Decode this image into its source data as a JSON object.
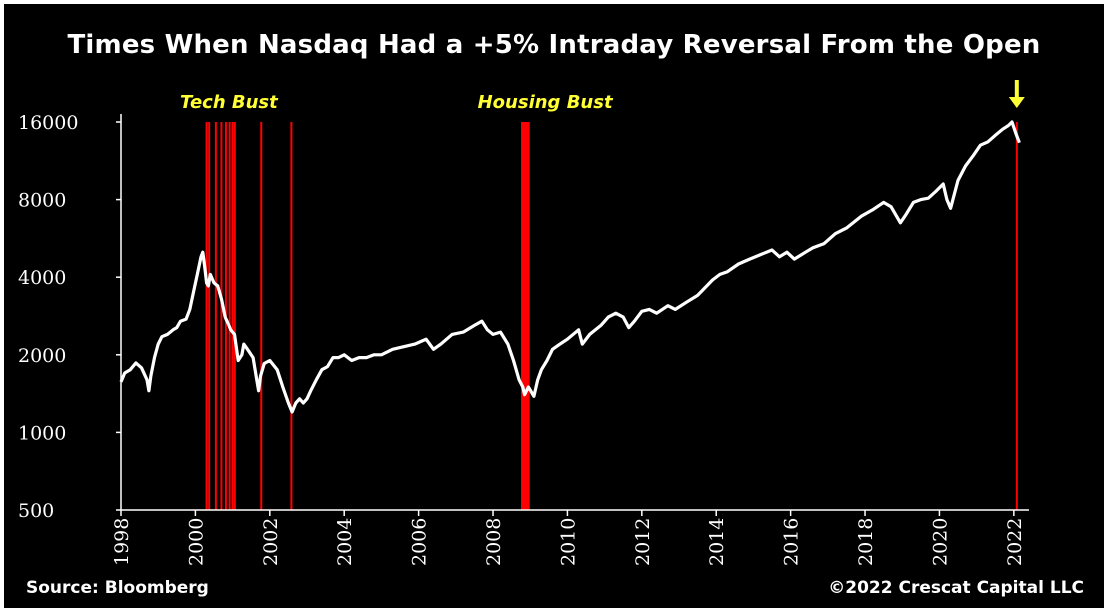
{
  "chart_data": {
    "type": "line",
    "title": "Times When Nasdaq Had a +5% Intraday Reversal From the Open",
    "xlabel": "",
    "ylabel": "",
    "y_scale": "log",
    "ylim": [
      500,
      16000
    ],
    "yticks": [
      500,
      1000,
      2000,
      4000,
      8000,
      16000
    ],
    "xlim": [
      1998,
      2022.3
    ],
    "xticks": [
      1998,
      2000,
      2002,
      2004,
      2006,
      2008,
      2010,
      2012,
      2014,
      2016,
      2018,
      2020,
      2022
    ],
    "grid": false,
    "legend": "none",
    "series": [
      {
        "color": "#ffffff",
        "x": [
          1998.0,
          1998.1,
          1998.25,
          1998.4,
          1998.55,
          1998.7,
          1998.75,
          1998.8,
          1998.9,
          1999.0,
          1999.1,
          1999.25,
          1999.4,
          1999.5,
          1999.6,
          1999.75,
          1999.85,
          1999.95,
          2000.05,
          2000.15,
          2000.2,
          2000.25,
          2000.3,
          2000.35,
          2000.4,
          2000.5,
          2000.6,
          2000.7,
          2000.8,
          2000.9,
          2000.95,
          2001.05,
          2001.15,
          2001.25,
          2001.3,
          2001.4,
          2001.55,
          2001.7,
          2001.75,
          2001.85,
          2002.0,
          2002.2,
          2002.35,
          2002.5,
          2002.6,
          2002.7,
          2002.8,
          2002.9,
          2003.0,
          2003.1,
          2003.25,
          2003.4,
          2003.55,
          2003.7,
          2003.85,
          2004.0,
          2004.2,
          2004.4,
          2004.6,
          2004.8,
          2005.0,
          2005.3,
          2005.6,
          2005.9,
          2006.2,
          2006.4,
          2006.6,
          2006.9,
          2007.2,
          2007.5,
          2007.7,
          2007.85,
          2008.0,
          2008.2,
          2008.4,
          2008.55,
          2008.7,
          2008.8,
          2008.85,
          2008.95,
          2009.1,
          2009.2,
          2009.3,
          2009.45,
          2009.6,
          2009.8,
          2010.0,
          2010.3,
          2010.4,
          2010.6,
          2010.9,
          2011.1,
          2011.3,
          2011.5,
          2011.65,
          2011.8,
          2012.0,
          2012.2,
          2012.4,
          2012.7,
          2012.9,
          2013.2,
          2013.5,
          2013.9,
          2014.1,
          2014.3,
          2014.6,
          2014.9,
          2015.2,
          2015.5,
          2015.7,
          2015.9,
          2016.1,
          2016.4,
          2016.6,
          2016.9,
          2017.2,
          2017.5,
          2017.9,
          2018.2,
          2018.5,
          2018.7,
          2018.95,
          2019.1,
          2019.3,
          2019.5,
          2019.7,
          2019.9,
          2020.1,
          2020.2,
          2020.3,
          2020.5,
          2020.7,
          2020.9,
          2021.1,
          2021.3,
          2021.5,
          2021.7,
          2021.85,
          2021.95,
          2022.05,
          2022.15
        ],
        "values": [
          1570,
          1700,
          1750,
          1860,
          1780,
          1600,
          1450,
          1650,
          1950,
          2200,
          2350,
          2400,
          2500,
          2550,
          2700,
          2750,
          3000,
          3500,
          4100,
          4800,
          5000,
          4400,
          3800,
          3700,
          4100,
          3800,
          3700,
          3300,
          2800,
          2600,
          2500,
          2400,
          1900,
          2000,
          2200,
          2100,
          1950,
          1450,
          1650,
          1850,
          1900,
          1750,
          1500,
          1300,
          1200,
          1300,
          1350,
          1300,
          1350,
          1450,
          1600,
          1750,
          1800,
          1950,
          1950,
          2000,
          1900,
          1950,
          1950,
          2000,
          2000,
          2100,
          2150,
          2200,
          2300,
          2100,
          2200,
          2400,
          2450,
          2600,
          2700,
          2500,
          2400,
          2450,
          2200,
          1900,
          1600,
          1500,
          1400,
          1500,
          1380,
          1600,
          1750,
          1900,
          2100,
          2200,
          2300,
          2500,
          2200,
          2400,
          2600,
          2800,
          2900,
          2800,
          2550,
          2700,
          2950,
          3000,
          2900,
          3100,
          3000,
          3200,
          3400,
          3900,
          4100,
          4200,
          4500,
          4700,
          4900,
          5100,
          4800,
          5000,
          4700,
          5000,
          5200,
          5400,
          5900,
          6200,
          6900,
          7300,
          7800,
          7500,
          6500,
          7000,
          7800,
          8000,
          8100,
          8600,
          9200,
          8000,
          7400,
          9500,
          10800,
          11800,
          13000,
          13400,
          14200,
          15000,
          15500,
          16000,
          14500,
          13300
        ]
      }
    ],
    "annotations": [
      {
        "text": "Tech Bust",
        "x": 2000.9
      },
      {
        "text": "Housing Bust",
        "x": 2009.4
      }
    ],
    "reversal_dates": [
      2000.3,
      2000.37,
      2000.55,
      2000.7,
      2000.82,
      2000.92,
      2001.0,
      2001.06,
      2001.77,
      2002.58,
      2008.78,
      2008.8,
      2008.82,
      2008.85,
      2008.87,
      2008.9,
      2008.93,
      2008.96,
      2022.08
    ],
    "reversal_color": "#ff0000",
    "annotation_color": "#ffff33",
    "axis_color": "#ffffff"
  },
  "footer": {
    "source": "Source: Bloomberg",
    "copyright": "©2022 Crescat Capital LLC"
  }
}
